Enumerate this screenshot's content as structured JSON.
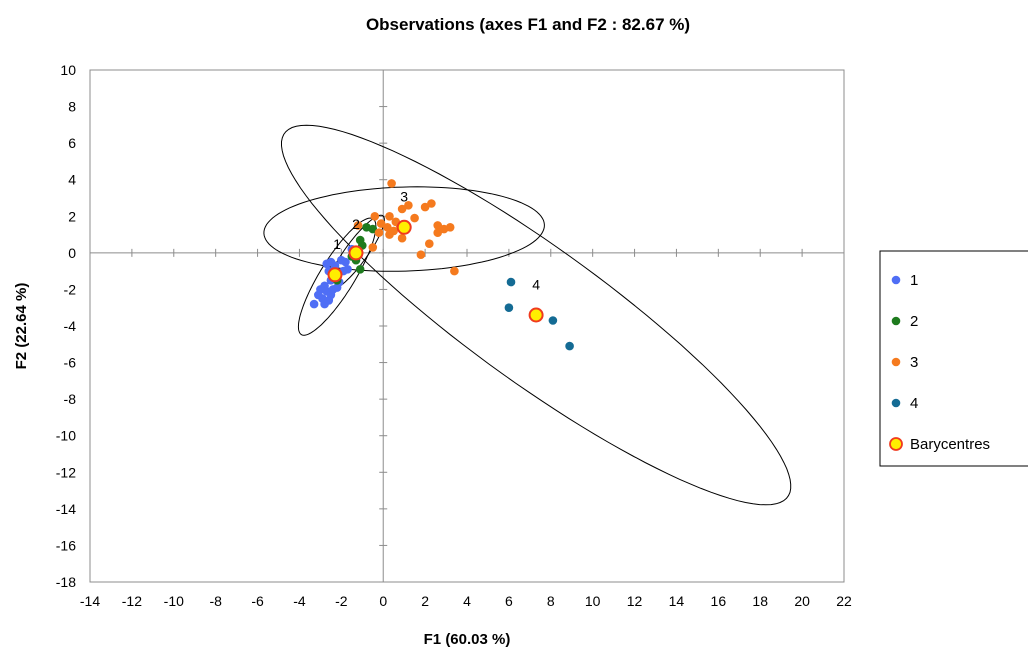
{
  "chart_data": {
    "type": "scatter",
    "title": "Observations (axes F1 and F2 : 82.67 %)",
    "xlabel": "F1 (60.03 %)",
    "ylabel": "F2 (22.64 %)",
    "xlim": [
      -14,
      22
    ],
    "ylim": [
      -18,
      10
    ],
    "xticks": [
      -14,
      -12,
      -10,
      -8,
      -6,
      -4,
      -2,
      0,
      2,
      4,
      6,
      8,
      10,
      12,
      14,
      16,
      18,
      20,
      22
    ],
    "yticks": [
      -18,
      -16,
      -14,
      -12,
      -10,
      -8,
      -6,
      -4,
      -2,
      0,
      2,
      4,
      6,
      8,
      10
    ],
    "grid": false,
    "legend_position": "right",
    "series": [
      {
        "name": "1",
        "color": "#4f6ef5",
        "points": [
          [
            -2.7,
            -0.6
          ],
          [
            -2.5,
            -0.5
          ],
          [
            -2.3,
            -0.7
          ],
          [
            -2.0,
            -0.4
          ],
          [
            -1.8,
            -0.5
          ],
          [
            -2.6,
            -1.0
          ],
          [
            -2.4,
            -1.1
          ],
          [
            -2.2,
            -1.3
          ],
          [
            -1.9,
            -1.0
          ],
          [
            -2.1,
            -1.6
          ],
          [
            -2.8,
            -1.8
          ],
          [
            -3.0,
            -2.0
          ],
          [
            -2.7,
            -2.1
          ],
          [
            -2.5,
            -2.3
          ],
          [
            -2.9,
            -2.5
          ],
          [
            -3.1,
            -2.3
          ],
          [
            -2.6,
            -2.6
          ],
          [
            -2.4,
            -2.0
          ],
          [
            -2.8,
            -2.8
          ],
          [
            -3.3,
            -2.8
          ],
          [
            -2.2,
            -1.9
          ],
          [
            -1.7,
            -0.9
          ],
          [
            -2.5,
            -1.5
          ],
          [
            -1.5,
            0.2
          ]
        ]
      },
      {
        "name": "2",
        "color": "#1e7b1e",
        "points": [
          [
            -1.1,
            0.7
          ],
          [
            -1.0,
            0.4
          ],
          [
            -1.5,
            -0.2
          ],
          [
            -1.3,
            -0.4
          ],
          [
            -1.1,
            -0.9
          ],
          [
            -0.5,
            1.3
          ],
          [
            -0.8,
            1.4
          ],
          [
            -2.2,
            -1.5
          ],
          [
            -1.2,
            0.1
          ]
        ]
      },
      {
        "name": "3",
        "color": "#f57a1e",
        "points": [
          [
            0.4,
            3.8
          ],
          [
            -0.4,
            2.0
          ],
          [
            0.3,
            2.0
          ],
          [
            0.9,
            2.4
          ],
          [
            1.2,
            2.6
          ],
          [
            1.5,
            1.9
          ],
          [
            2.0,
            2.5
          ],
          [
            2.3,
            2.7
          ],
          [
            -0.1,
            1.6
          ],
          [
            0.2,
            1.4
          ],
          [
            0.5,
            1.2
          ],
          [
            0.8,
            1.5
          ],
          [
            0.3,
            1.0
          ],
          [
            0.6,
            1.7
          ],
          [
            -0.2,
            1.1
          ],
          [
            2.6,
            1.5
          ],
          [
            2.9,
            1.3
          ],
          [
            3.2,
            1.4
          ],
          [
            2.6,
            1.1
          ],
          [
            2.2,
            0.5
          ],
          [
            1.8,
            -0.1
          ],
          [
            3.4,
            -1.0
          ],
          [
            0.9,
            0.8
          ],
          [
            -0.5,
            0.3
          ],
          [
            -1.2,
            1.5
          ]
        ]
      },
      {
        "name": "4",
        "color": "#146b94",
        "points": [
          [
            6.1,
            -1.6
          ],
          [
            6.0,
            -3.0
          ],
          [
            8.1,
            -3.7
          ],
          [
            8.9,
            -5.1
          ]
        ]
      },
      {
        "name": "Barycentres",
        "color": "#ffee00",
        "stroke": "#f03a1e",
        "points": [
          [
            -2.3,
            -1.2
          ],
          [
            -1.3,
            0.0
          ],
          [
            1.0,
            1.4
          ],
          [
            7.3,
            -3.4
          ]
        ]
      }
    ],
    "ellipses": [
      {
        "cx": -2.2,
        "cy": -1.3,
        "rx": 3.6,
        "ry": 0.85,
        "angle": 62
      },
      {
        "cx": -1.3,
        "cy": 0.0,
        "rx": 2.4,
        "ry": 0.55,
        "angle": 58
      },
      {
        "cx": 1.0,
        "cy": 1.3,
        "rx": 6.7,
        "ry": 2.3,
        "angle": 2
      },
      {
        "cx": 7.3,
        "cy": -3.4,
        "rx": 15.6,
        "ry": 3.5,
        "angle": -40
      }
    ],
    "annotations": [
      {
        "text": "1",
        "x": -2.2,
        "y": 0.2
      },
      {
        "text": "2",
        "x": -1.3,
        "y": 1.3
      },
      {
        "text": "3",
        "x": 1.0,
        "y": 2.8
      },
      {
        "text": "4",
        "x": 7.3,
        "y": -2.0
      }
    ],
    "legend": [
      "1",
      "2",
      "3",
      "4",
      "Barycentres"
    ]
  }
}
